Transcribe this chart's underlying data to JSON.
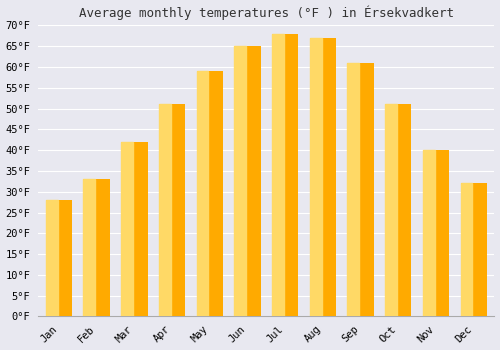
{
  "title": "Average monthly temperatures (°F ) in Érsekvadkert",
  "months": [
    "Jan",
    "Feb",
    "Mar",
    "Apr",
    "May",
    "Jun",
    "Jul",
    "Aug",
    "Sep",
    "Oct",
    "Nov",
    "Dec"
  ],
  "values": [
    28,
    33,
    42,
    51,
    59,
    65,
    68,
    67,
    61,
    51,
    40,
    32
  ],
  "bar_color_main": "#FFAA00",
  "bar_color_light": "#FFD966",
  "ylim": [
    0,
    70
  ],
  "yticks": [
    0,
    5,
    10,
    15,
    20,
    25,
    30,
    35,
    40,
    45,
    50,
    55,
    60,
    65,
    70
  ],
  "ytick_labels": [
    "0°F",
    "5°F",
    "10°F",
    "15°F",
    "20°F",
    "25°F",
    "30°F",
    "35°F",
    "40°F",
    "45°F",
    "50°F",
    "55°F",
    "60°F",
    "65°F",
    "70°F"
  ],
  "background_color": "#e8e8f0",
  "title_fontsize": 9,
  "tick_fontsize": 7.5,
  "grid_color": "#ffffff",
  "spine_color": "#aaaaaa"
}
